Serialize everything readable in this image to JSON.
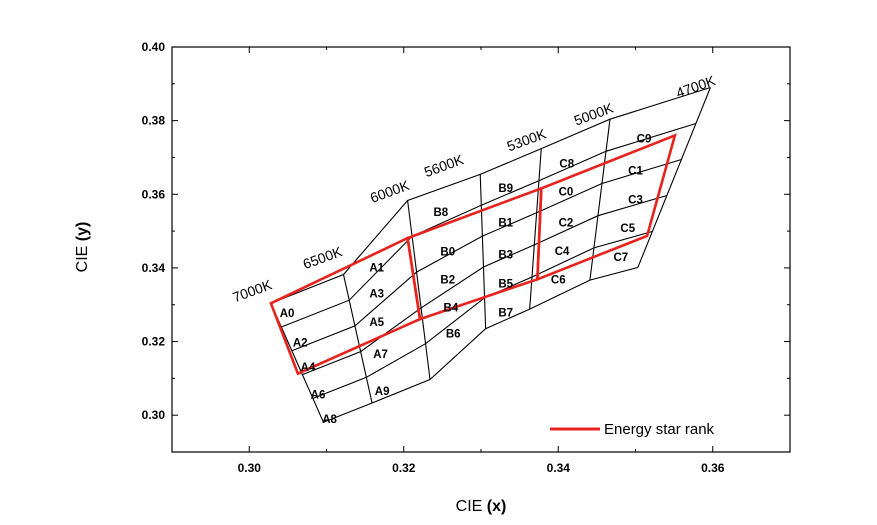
{
  "chart_data": {
    "type": "scatter",
    "title": "",
    "xlabel": {
      "prefix": "CIE ",
      "var": "(x)"
    },
    "ylabel": {
      "prefix": "CIE ",
      "var": "(y)"
    },
    "xlim": [
      0.29,
      0.37
    ],
    "ylim": [
      0.29,
      0.4
    ],
    "xticks": [
      "0.30",
      "0.32",
      "0.34",
      "0.36"
    ],
    "xtick_values": [
      0.3,
      0.32,
      0.34,
      0.36
    ],
    "yticks": [
      "0.30",
      "0.32",
      "0.34",
      "0.36",
      "0.38",
      "0.40"
    ],
    "ytick_values": [
      0.3,
      0.32,
      0.34,
      0.36,
      0.38,
      0.4
    ],
    "grid": false,
    "legend": {
      "position": "bottom-right",
      "entries": [
        {
          "label": "Energy star rank",
          "color": "#e8231e"
        }
      ]
    },
    "colors": {
      "grid_lines": "#000000",
      "energy_star": "#e8231e"
    },
    "bin_columns": [
      {
        "top": [
          0.3028,
          0.3304
        ],
        "bottom": [
          0.3096,
          0.2981
        ]
      },
      {
        "top": [
          0.3122,
          0.3382
        ],
        "bottom": [
          0.3159,
          0.3033
        ]
      },
      {
        "top": [
          0.3205,
          0.3583
        ],
        "bottom": [
          0.3234,
          0.3097
        ]
      },
      {
        "top": [
          0.3299,
          0.3654
        ],
        "bottom": [
          0.3306,
          0.3235
        ]
      },
      {
        "top": [
          0.3378,
          0.3724
        ],
        "bottom": [
          0.3363,
          0.3288
        ]
      },
      {
        "top": [
          0.3467,
          0.3804
        ],
        "bottom": [
          0.3441,
          0.3367
        ]
      },
      {
        "top": [
          0.3597,
          0.389
        ],
        "bottom": [
          0.3503,
          0.3401
        ]
      }
    ],
    "bin_rows": 5,
    "temperature_labels": [
      {
        "text": "7000K",
        "x": 0.3006,
        "y": 0.3325
      },
      {
        "text": "6500K",
        "x": 0.3097,
        "y": 0.3415
      },
      {
        "text": "6000K",
        "x": 0.3184,
        "y": 0.3595
      },
      {
        "text": "5600K",
        "x": 0.3254,
        "y": 0.3665
      },
      {
        "text": "5300K",
        "x": 0.3361,
        "y": 0.3735
      },
      {
        "text": "5000K",
        "x": 0.3448,
        "y": 0.3805
      },
      {
        "text": "4700K",
        "x": 0.358,
        "y": 0.388
      }
    ],
    "bins": [
      {
        "name": "A0",
        "x": 0.3049,
        "y": 0.3278
      },
      {
        "name": "A1",
        "x": 0.3165,
        "y": 0.3401
      },
      {
        "name": "A2",
        "x": 0.3066,
        "y": 0.3197
      },
      {
        "name": "A3",
        "x": 0.3165,
        "y": 0.3331
      },
      {
        "name": "A4",
        "x": 0.3076,
        "y": 0.3131
      },
      {
        "name": "A5",
        "x": 0.3165,
        "y": 0.3253
      },
      {
        "name": "A6",
        "x": 0.3089,
        "y": 0.3056
      },
      {
        "name": "A7",
        "x": 0.317,
        "y": 0.3166
      },
      {
        "name": "A8",
        "x": 0.3104,
        "y": 0.299
      },
      {
        "name": "A9",
        "x": 0.3172,
        "y": 0.3066
      },
      {
        "name": "B0",
        "x": 0.3257,
        "y": 0.3445
      },
      {
        "name": "B1",
        "x": 0.3332,
        "y": 0.3523
      },
      {
        "name": "B2",
        "x": 0.3257,
        "y": 0.3369
      },
      {
        "name": "B3",
        "x": 0.3332,
        "y": 0.3437
      },
      {
        "name": "B4",
        "x": 0.3261,
        "y": 0.3292
      },
      {
        "name": "B5",
        "x": 0.3332,
        "y": 0.3357
      },
      {
        "name": "B6",
        "x": 0.3264,
        "y": 0.3222
      },
      {
        "name": "B7",
        "x": 0.3332,
        "y": 0.3279
      },
      {
        "name": "B8",
        "x": 0.3248,
        "y": 0.3552
      },
      {
        "name": "B9",
        "x": 0.3332,
        "y": 0.3617
      },
      {
        "name": "C0",
        "x": 0.341,
        "y": 0.3608
      },
      {
        "name": "C1",
        "x": 0.35,
        "y": 0.3664
      },
      {
        "name": "C2",
        "x": 0.341,
        "y": 0.3524
      },
      {
        "name": "C3",
        "x": 0.35,
        "y": 0.3586
      },
      {
        "name": "C4",
        "x": 0.3405,
        "y": 0.3446
      },
      {
        "name": "C5",
        "x": 0.349,
        "y": 0.3508
      },
      {
        "name": "C6",
        "x": 0.34,
        "y": 0.3368
      },
      {
        "name": "C7",
        "x": 0.3481,
        "y": 0.3429
      },
      {
        "name": "C8",
        "x": 0.3411,
        "y": 0.3684
      },
      {
        "name": "C9",
        "x": 0.3511,
        "y": 0.3752
      }
    ],
    "energy_star_outlines": [
      [
        [
          0.3028,
          0.3304
        ],
        [
          0.3205,
          0.3481
        ],
        [
          0.3221,
          0.3261
        ],
        [
          0.3063,
          0.3113
        ]
      ],
      [
        [
          0.3205,
          0.3481
        ],
        [
          0.3378,
          0.3616
        ],
        [
          0.3373,
          0.3369
        ],
        [
          0.3221,
          0.3261
        ]
      ],
      [
        [
          0.3378,
          0.3616
        ],
        [
          0.3551,
          0.376
        ],
        [
          0.3515,
          0.3487
        ],
        [
          0.3373,
          0.3369
        ]
      ]
    ]
  }
}
